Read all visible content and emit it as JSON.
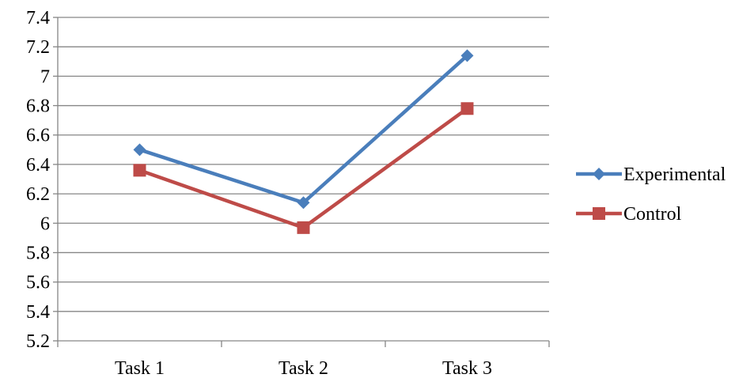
{
  "chart_data": {
    "type": "line",
    "categories": [
      "Task 1",
      "Task 2",
      "Task 3"
    ],
    "series": [
      {
        "name": "Experimental",
        "values": [
          6.5,
          6.14,
          7.14
        ],
        "color": "#4a7ebb",
        "marker": "diamond"
      },
      {
        "name": "Control",
        "values": [
          6.36,
          5.97,
          6.78
        ],
        "color": "#be4b48",
        "marker": "square"
      }
    ],
    "ylim": [
      5.2,
      7.4
    ],
    "yticks": [
      "5.2",
      "5.4",
      "5.6",
      "5.8",
      "6",
      "6.2",
      "6.4",
      "6.6",
      "6.8",
      "7",
      "7.2",
      "7.4"
    ],
    "grid": true,
    "legend_position": "right",
    "gridline_color": "#868686",
    "axis_color": "#868686"
  }
}
